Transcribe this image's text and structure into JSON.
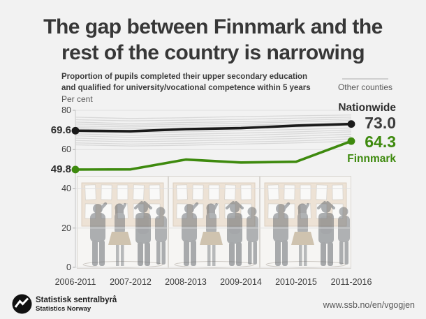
{
  "header": {
    "title_line1": "The gap between Finnmark and the",
    "title_line2": "rest of the country is narrowing"
  },
  "chart": {
    "subtitle_line1": "Proportion of pupils completed their upper secondary education",
    "subtitle_line2": "and qualified for university/vocational competence within 5 years",
    "unit_label": "Per cent",
    "legend_other_counties": "Other counties",
    "label_nationwide": "Nationwide",
    "label_finnmark": "Finnmark",
    "nationwide_start_label": "69.6",
    "nationwide_end_label": "73.0",
    "finnmark_start_label": "49.8",
    "finnmark_end_label": "64.3"
  },
  "axis": {
    "yticks": [
      "80",
      "60",
      "40",
      "20",
      "0"
    ]
  },
  "chart_data": {
    "type": "line",
    "title": "The gap between Finnmark and the rest of the country is narrowing",
    "subtitle": "Proportion of pupils completed their upper secondary education and qualified for university/vocational competence within 5 years",
    "ylabel": "Per cent",
    "ylim": [
      0,
      80
    ],
    "ytick_values": [
      0,
      20,
      40,
      60,
      80
    ],
    "grid": "horizontal",
    "legend_position": "right-labels",
    "categories": [
      "2006-2011",
      "2007-2012",
      "2008-2013",
      "2009-2014",
      "2010-2015",
      "2011-2016"
    ],
    "series": [
      {
        "name": "Nationwide",
        "color": "#1a1a1a",
        "values": [
          69.6,
          69.3,
          70.4,
          70.9,
          72.2,
          73.0
        ]
      },
      {
        "name": "Finnmark",
        "color": "#3e8a0e",
        "values": [
          49.8,
          49.9,
          54.9,
          53.4,
          53.8,
          64.3
        ]
      }
    ],
    "other_counties_color": "#d4d4d4",
    "other_counties_values": [
      [
        76.5,
        75.8,
        76.2,
        76.8,
        77.2,
        77.6
      ],
      [
        75.2,
        74.6,
        75.0,
        75.4,
        76.0,
        76.5
      ],
      [
        74.0,
        73.2,
        73.8,
        74.2,
        74.8,
        75.6
      ],
      [
        73.0,
        72.4,
        72.8,
        73.4,
        74.0,
        74.8
      ],
      [
        72.0,
        71.5,
        72.0,
        72.4,
        73.0,
        73.8
      ],
      [
        71.2,
        70.6,
        71.0,
        71.6,
        72.2,
        73.2
      ],
      [
        70.4,
        69.8,
        70.4,
        70.8,
        71.4,
        72.4
      ],
      [
        69.0,
        68.4,
        69.0,
        69.6,
        70.2,
        71.0
      ],
      [
        68.0,
        67.2,
        67.8,
        68.4,
        69.0,
        70.0
      ],
      [
        67.0,
        66.2,
        66.8,
        67.2,
        68.0,
        69.0
      ],
      [
        65.8,
        65.0,
        65.6,
        66.0,
        66.8,
        67.8
      ],
      [
        64.6,
        64.0,
        64.4,
        65.0,
        65.6,
        66.6
      ],
      [
        63.4,
        62.8,
        63.2,
        63.8,
        64.4,
        65.4
      ],
      [
        62.4,
        61.8,
        62.2,
        62.8,
        63.4,
        64.2
      ]
    ]
  },
  "footer": {
    "org_name_no": "Statistisk sentralbyrå",
    "org_name_en": "Statistics Norway",
    "url": "www.ssb.no/en/vgogjen"
  }
}
